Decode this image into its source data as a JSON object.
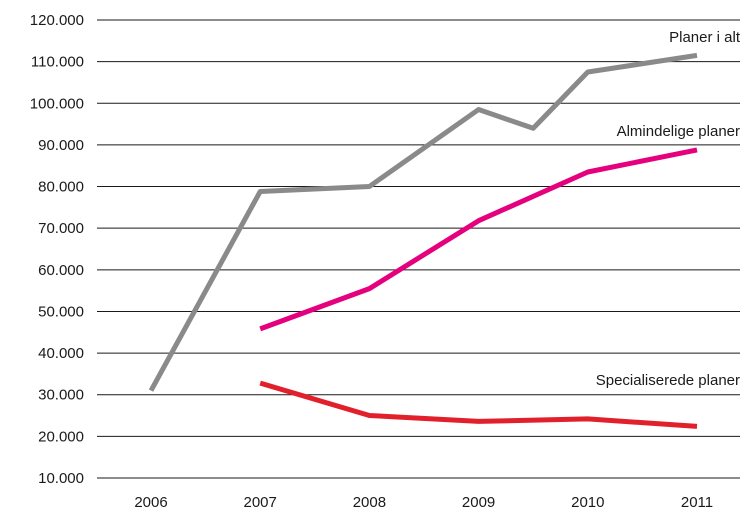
{
  "chart_data": {
    "type": "line",
    "title": "",
    "xlabel": "",
    "ylabel": "",
    "x": [
      "2006",
      "2007",
      "2008",
      "2009",
      "2010",
      "2011"
    ],
    "ylim": [
      10000,
      120000
    ],
    "grid": "horizontal",
    "y_ticks": [
      {
        "value": 10000,
        "label": "10.000"
      },
      {
        "value": 20000,
        "label": "20.000"
      },
      {
        "value": 30000,
        "label": "30.000"
      },
      {
        "value": 40000,
        "label": "40.000"
      },
      {
        "value": 50000,
        "label": "50.000"
      },
      {
        "value": 60000,
        "label": "60.000"
      },
      {
        "value": 70000,
        "label": "70.000"
      },
      {
        "value": 80000,
        "label": "80.000"
      },
      {
        "value": 90000,
        "label": "90.000"
      },
      {
        "value": 100000,
        "label": "100.000"
      },
      {
        "value": 110000,
        "label": "110.000"
      },
      {
        "value": 120000,
        "label": "120.000"
      }
    ],
    "series": [
      {
        "name": "Planer i alt",
        "color": "#8a8a8a",
        "values": [
          31000,
          78800,
          80000,
          98500,
          107500,
          111500
        ],
        "extra_points": [
          {
            "x": 2009.5,
            "y": 94000
          }
        ]
      },
      {
        "name": "Almindelige planer",
        "color": "#e5007e",
        "values": [
          null,
          45800,
          55500,
          71800,
          83500,
          88800
        ]
      },
      {
        "name": "Specialiserede planer",
        "color": "#e2202c",
        "values": [
          null,
          32800,
          25000,
          23600,
          24200,
          22400
        ]
      }
    ]
  }
}
